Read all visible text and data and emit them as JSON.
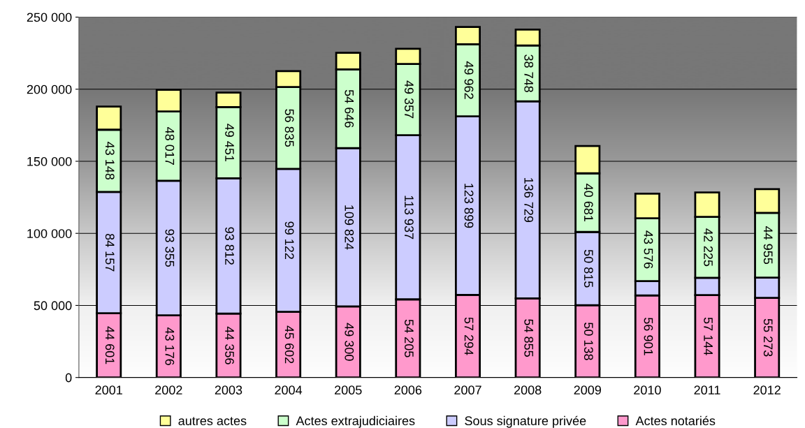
{
  "chart_data": {
    "type": "bar",
    "stacked": true,
    "categories": [
      "2001",
      "2002",
      "2003",
      "2004",
      "2005",
      "2006",
      "2007",
      "2008",
      "2009",
      "2010",
      "2011",
      "2012"
    ],
    "series": [
      {
        "name": "Actes notariés",
        "color": "#ff99cc",
        "values": [
          44601,
          43176,
          44356,
          45602,
          49300,
          54205,
          57294,
          54855,
          50138,
          56901,
          57144,
          55273
        ],
        "value_labels": [
          "44 601",
          "43 176",
          "44 356",
          "45 602",
          "49 300",
          "54 205",
          "57 294",
          "54 855",
          "50 138",
          "56 901",
          "57 144",
          "55 273"
        ]
      },
      {
        "name": "Sous signature privée",
        "color": "#ccccff",
        "values": [
          84157,
          93355,
          93812,
          99122,
          109824,
          113937,
          123899,
          136729,
          50815,
          10000,
          12000,
          14000
        ],
        "value_labels": [
          "84 157",
          "93 355",
          "93 812",
          "99 122",
          "109 824",
          "113 937",
          "123 899",
          "136 729",
          "50 815",
          null,
          null,
          null
        ]
      },
      {
        "name": "Actes extrajudiciaires",
        "color": "#ccffcc",
        "values": [
          43148,
          48017,
          49451,
          56835,
          54646,
          49357,
          49962,
          38748,
          40681,
          43576,
          42225,
          44955
        ],
        "value_labels": [
          "43 148",
          "48 017",
          "49 451",
          "56 835",
          "54 646",
          "49 357",
          "49 962",
          "38 748",
          "40 681",
          "43 576",
          "42 225",
          "44 955"
        ]
      },
      {
        "name": "autres actes",
        "color": "#ffff99",
        "values": [
          16000,
          15000,
          10000,
          11000,
          11500,
          10500,
          12000,
          11000,
          19000,
          17000,
          17000,
          16500
        ]
      }
    ],
    "ylim": [
      0,
      250000
    ],
    "yticks": [
      0,
      {
        "value": 50000,
        "label": "50 000"
      },
      {
        "value": 100000,
        "label": "100 000"
      },
      {
        "value": 150000,
        "label": "150 000"
      },
      {
        "value": 200000,
        "label": "200 000"
      },
      {
        "value": 250000,
        "label": "250 000"
      }
    ],
    "grid": "y",
    "legend": "bottom"
  }
}
